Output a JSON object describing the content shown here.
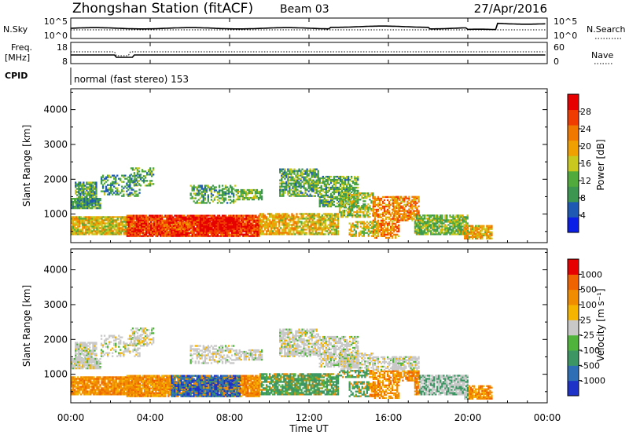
{
  "header": {
    "station": "Zhongshan Station (fitACF)",
    "beam": "Beam 03",
    "date": "27/Apr/2016"
  },
  "nsky_panel": {
    "left_label": "N.Sky",
    "left_ticks": [
      "10^5",
      "10^0"
    ],
    "right_label": "N.Search",
    "right_ticks": [
      "10^5",
      "10^0"
    ]
  },
  "freq_panel": {
    "left_label_1": "Freq.",
    "left_label_2": "[MHz]",
    "left_ticks": [
      "18",
      "8"
    ],
    "right_label": "Nave",
    "right_ticks": [
      "60",
      "0"
    ]
  },
  "cpid": {
    "label": "CPID",
    "value": "normal (fast stereo) 153"
  },
  "colors": {
    "power_scale": [
      "#0a1ee6",
      "#1e5ab4",
      "#3c9650",
      "#50aa3c",
      "#c8c81e",
      "#f0a000",
      "#f07800",
      "#f03c00",
      "#e60000"
    ],
    "velocity_scale": [
      "#1e32c8",
      "#2d6eb4",
      "#3c9664",
      "#50b43c",
      "#c8c8c8",
      "#f5b400",
      "#f08c00",
      "#f06400",
      "#e60000"
    ]
  },
  "chart_data": [
    {
      "type": "heatmap",
      "name": "power",
      "ylabel": "Slant Range [km]",
      "ylim": [
        180,
        4600
      ],
      "y_ticks": [
        "4000",
        "3000",
        "2000",
        "1000"
      ],
      "y_tick_values": [
        4000,
        3000,
        2000,
        1000
      ],
      "xlim": [
        0,
        24
      ],
      "colorbar_label": "Power [dB]",
      "colorbar_ticks": [
        "28",
        "24",
        "20",
        "16",
        "12",
        "8",
        "4"
      ],
      "colorbar_range": [
        0,
        32
      ]
    },
    {
      "type": "heatmap",
      "name": "velocity",
      "ylabel": "Slant Range [km]",
      "ylim": [
        180,
        4600
      ],
      "y_ticks": [
        "4000",
        "3000",
        "2000",
        "1000"
      ],
      "y_tick_values": [
        4000,
        3000,
        2000,
        1000
      ],
      "xlim": [
        0,
        24
      ],
      "colorbar_label": "Velocity [m s⁻¹]",
      "colorbar_ticks": [
        "1000",
        "500",
        "100",
        "25",
        "-25",
        "-100",
        "-500",
        "-1000"
      ]
    }
  ],
  "x_axis": {
    "label": "Time UT",
    "ticks": [
      "00:00",
      "04:00",
      "08:00",
      "12:00",
      "16:00",
      "20:00",
      "00:00"
    ],
    "tick_values": [
      0,
      4,
      8,
      12,
      16,
      20,
      24
    ]
  }
}
